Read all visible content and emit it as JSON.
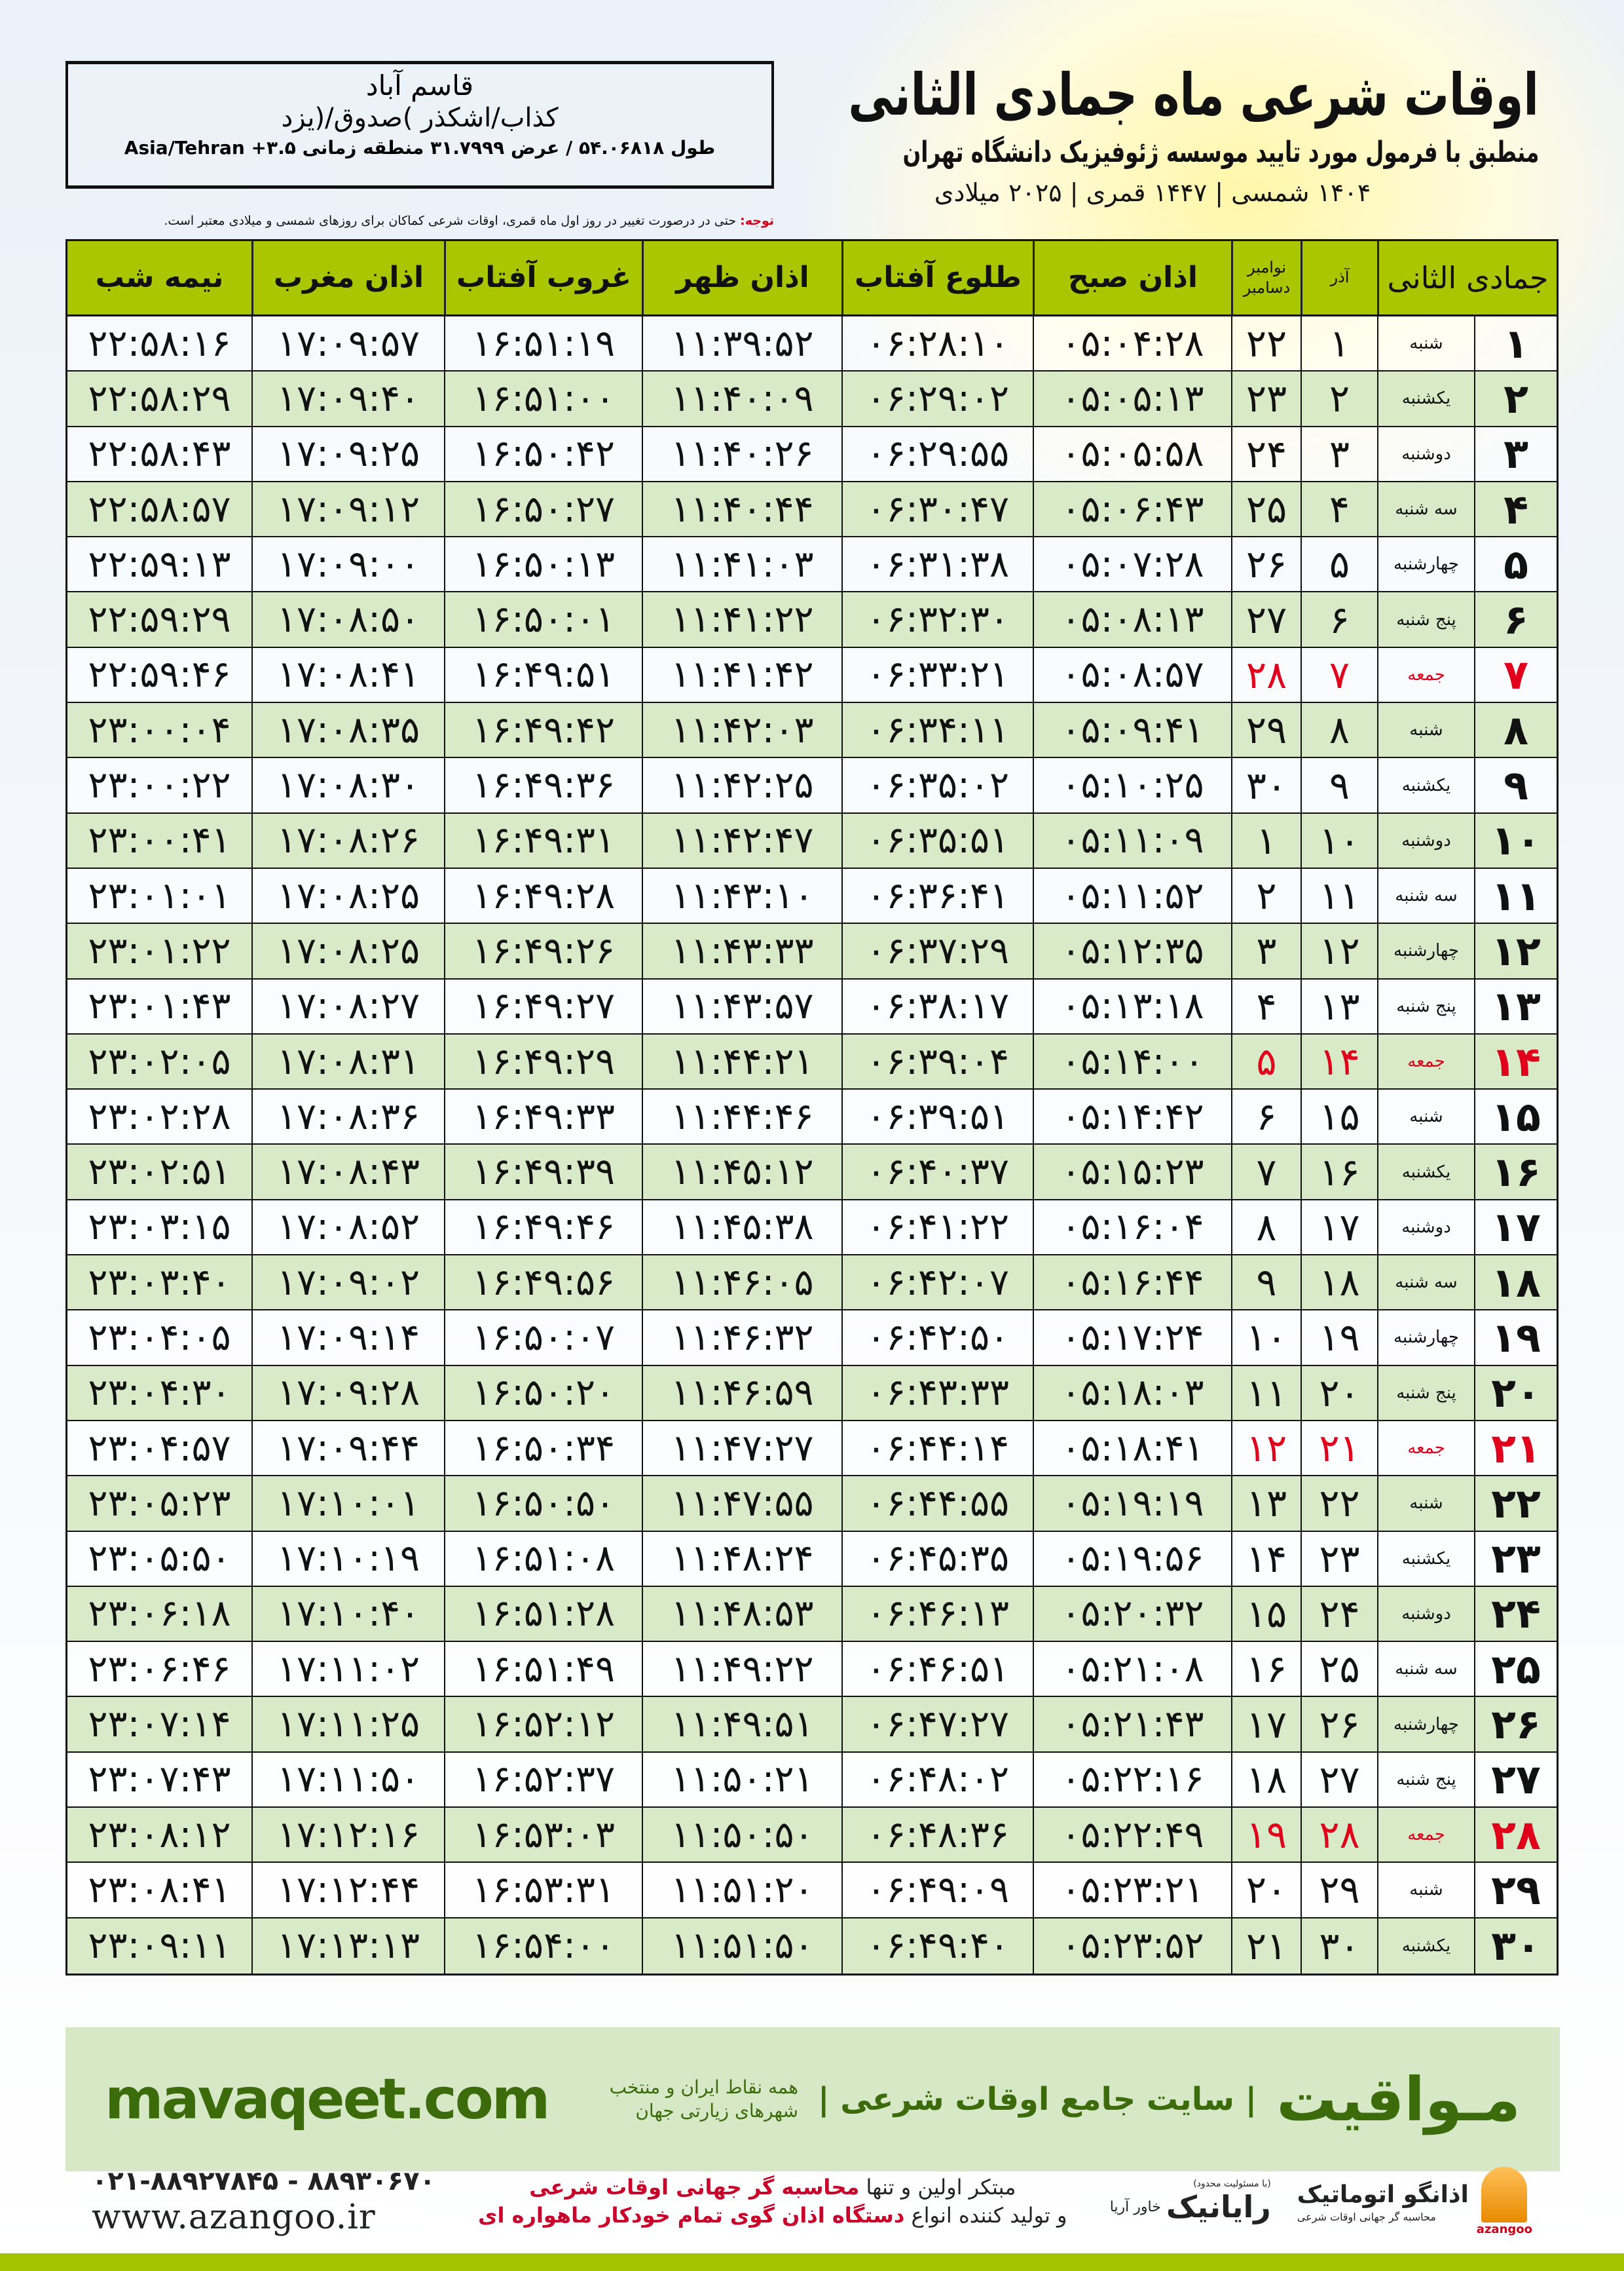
{
  "header": {
    "title": "اوقات شرعی ماه جمادی الثانی",
    "subtitle": "منطبق با فرمول مورد تایید موسسه ژئوفیزیک دانشگاه تهران",
    "years": "۱۴۰۴ شمسی | ۱۴۴۷ قمری | ۲۰۲۵ میلادی"
  },
  "location": {
    "name": "قاسم آباد",
    "region": "کذاب/اشکذر )صدوق/(یزد",
    "coords": "طول ۵۴.۰۶۸۱۸ / عرض ۳۱.۷۹۹۹ منطقه زمانی ۳.۵+ Asia/Tehran"
  },
  "note": {
    "label": "توجه:",
    "text": " حتی در درصورت تغییر در روز اول ماه قمری، اوقات شرعی کماکان برای روزهای شمسی و میلادی معتبر است."
  },
  "columns": {
    "month": "جمادی الثانی",
    "azar": "آذر",
    "greg1": "نوامبر",
    "greg2": "دسامبر",
    "fajr": "اذان صبح",
    "sunrise": "طلوع آفتاب",
    "dhuhr": "اذان ظهر",
    "sunset": "غروب آفتاب",
    "maghrib": "اذان مغرب",
    "midnight": "نیمه شب"
  },
  "colors": {
    "header": "#a9c600",
    "row_alt": "#d6e8c6",
    "friday": "#e0001b",
    "brand": "#3c6b0c"
  },
  "rows": [
    [
      "۱",
      "شنبه",
      "۱",
      "۲۲",
      "۰۵:۰۴:۲۸",
      "۰۶:۲۸:۱۰",
      "۱۱:۳۹:۵۲",
      "۱۶:۵۱:۱۹",
      "۱۷:۰۹:۵۷",
      "۲۲:۵۸:۱۶"
    ],
    [
      "۲",
      "یکشنبه",
      "۲",
      "۲۳",
      "۰۵:۰۵:۱۳",
      "۰۶:۲۹:۰۲",
      "۱۱:۴۰:۰۹",
      "۱۶:۵۱:۰۰",
      "۱۷:۰۹:۴۰",
      "۲۲:۵۸:۲۹"
    ],
    [
      "۳",
      "دوشنبه",
      "۳",
      "۲۴",
      "۰۵:۰۵:۵۸",
      "۰۶:۲۹:۵۵",
      "۱۱:۴۰:۲۶",
      "۱۶:۵۰:۴۲",
      "۱۷:۰۹:۲۵",
      "۲۲:۵۸:۴۳"
    ],
    [
      "۴",
      "سه شنبه",
      "۴",
      "۲۵",
      "۰۵:۰۶:۴۳",
      "۰۶:۳۰:۴۷",
      "۱۱:۴۰:۴۴",
      "۱۶:۵۰:۲۷",
      "۱۷:۰۹:۱۲",
      "۲۲:۵۸:۵۷"
    ],
    [
      "۵",
      "چهارشنبه",
      "۵",
      "۲۶",
      "۰۵:۰۷:۲۸",
      "۰۶:۳۱:۳۸",
      "۱۱:۴۱:۰۳",
      "۱۶:۵۰:۱۳",
      "۱۷:۰۹:۰۰",
      "۲۲:۵۹:۱۳"
    ],
    [
      "۶",
      "پنج شنبه",
      "۶",
      "۲۷",
      "۰۵:۰۸:۱۳",
      "۰۶:۳۲:۳۰",
      "۱۱:۴۱:۲۲",
      "۱۶:۵۰:۰۱",
      "۱۷:۰۸:۵۰",
      "۲۲:۵۹:۲۹"
    ],
    [
      "۷",
      "جمعه",
      "۷",
      "۲۸",
      "۰۵:۰۸:۵۷",
      "۰۶:۳۳:۲۱",
      "۱۱:۴۱:۴۲",
      "۱۶:۴۹:۵۱",
      "۱۷:۰۸:۴۱",
      "۲۲:۵۹:۴۶"
    ],
    [
      "۸",
      "شنبه",
      "۸",
      "۲۹",
      "۰۵:۰۹:۴۱",
      "۰۶:۳۴:۱۱",
      "۱۱:۴۲:۰۳",
      "۱۶:۴۹:۴۲",
      "۱۷:۰۸:۳۵",
      "۲۳:۰۰:۰۴"
    ],
    [
      "۹",
      "یکشنبه",
      "۹",
      "۳۰",
      "۰۵:۱۰:۲۵",
      "۰۶:۳۵:۰۲",
      "۱۱:۴۲:۲۵",
      "۱۶:۴۹:۳۶",
      "۱۷:۰۸:۳۰",
      "۲۳:۰۰:۲۲"
    ],
    [
      "۱۰",
      "دوشنبه",
      "۱۰",
      "۱",
      "۰۵:۱۱:۰۹",
      "۰۶:۳۵:۵۱",
      "۱۱:۴۲:۴۷",
      "۱۶:۴۹:۳۱",
      "۱۷:۰۸:۲۶",
      "۲۳:۰۰:۴۱"
    ],
    [
      "۱۱",
      "سه شنبه",
      "۱۱",
      "۲",
      "۰۵:۱۱:۵۲",
      "۰۶:۳۶:۴۱",
      "۱۱:۴۳:۱۰",
      "۱۶:۴۹:۲۸",
      "۱۷:۰۸:۲۵",
      "۲۳:۰۱:۰۱"
    ],
    [
      "۱۲",
      "چهارشنبه",
      "۱۲",
      "۳",
      "۰۵:۱۲:۳۵",
      "۰۶:۳۷:۲۹",
      "۱۱:۴۳:۳۳",
      "۱۶:۴۹:۲۶",
      "۱۷:۰۸:۲۵",
      "۲۳:۰۱:۲۲"
    ],
    [
      "۱۳",
      "پنج شنبه",
      "۱۳",
      "۴",
      "۰۵:۱۳:۱۸",
      "۰۶:۳۸:۱۷",
      "۱۱:۴۳:۵۷",
      "۱۶:۴۹:۲۷",
      "۱۷:۰۸:۲۷",
      "۲۳:۰۱:۴۳"
    ],
    [
      "۱۴",
      "جمعه",
      "۱۴",
      "۵",
      "۰۵:۱۴:۰۰",
      "۰۶:۳۹:۰۴",
      "۱۱:۴۴:۲۱",
      "۱۶:۴۹:۲۹",
      "۱۷:۰۸:۳۱",
      "۲۳:۰۲:۰۵"
    ],
    [
      "۱۵",
      "شنبه",
      "۱۵",
      "۶",
      "۰۵:۱۴:۴۲",
      "۰۶:۳۹:۵۱",
      "۱۱:۴۴:۴۶",
      "۱۶:۴۹:۳۳",
      "۱۷:۰۸:۳۶",
      "۲۳:۰۲:۲۸"
    ],
    [
      "۱۶",
      "یکشنبه",
      "۱۶",
      "۷",
      "۰۵:۱۵:۲۳",
      "۰۶:۴۰:۳۷",
      "۱۱:۴۵:۱۲",
      "۱۶:۴۹:۳۹",
      "۱۷:۰۸:۴۳",
      "۲۳:۰۲:۵۱"
    ],
    [
      "۱۷",
      "دوشنبه",
      "۱۷",
      "۸",
      "۰۵:۱۶:۰۴",
      "۰۶:۴۱:۲۲",
      "۱۱:۴۵:۳۸",
      "۱۶:۴۹:۴۶",
      "۱۷:۰۸:۵۲",
      "۲۳:۰۳:۱۵"
    ],
    [
      "۱۸",
      "سه شنبه",
      "۱۸",
      "۹",
      "۰۵:۱۶:۴۴",
      "۰۶:۴۲:۰۷",
      "۱۱:۴۶:۰۵",
      "۱۶:۴۹:۵۶",
      "۱۷:۰۹:۰۲",
      "۲۳:۰۳:۴۰"
    ],
    [
      "۱۹",
      "چهارشنبه",
      "۱۹",
      "۱۰",
      "۰۵:۱۷:۲۴",
      "۰۶:۴۲:۵۰",
      "۱۱:۴۶:۳۲",
      "۱۶:۵۰:۰۷",
      "۱۷:۰۹:۱۴",
      "۲۳:۰۴:۰۵"
    ],
    [
      "۲۰",
      "پنج شنبه",
      "۲۰",
      "۱۱",
      "۰۵:۱۸:۰۳",
      "۰۶:۴۳:۳۳",
      "۱۱:۴۶:۵۹",
      "۱۶:۵۰:۲۰",
      "۱۷:۰۹:۲۸",
      "۲۳:۰۴:۳۰"
    ],
    [
      "۲۱",
      "جمعه",
      "۲۱",
      "۱۲",
      "۰۵:۱۸:۴۱",
      "۰۶:۴۴:۱۴",
      "۱۱:۴۷:۲۷",
      "۱۶:۵۰:۳۴",
      "۱۷:۰۹:۴۴",
      "۲۳:۰۴:۵۷"
    ],
    [
      "۲۲",
      "شنبه",
      "۲۲",
      "۱۳",
      "۰۵:۱۹:۱۹",
      "۰۶:۴۴:۵۵",
      "۱۱:۴۷:۵۵",
      "۱۶:۵۰:۵۰",
      "۱۷:۱۰:۰۱",
      "۲۳:۰۵:۲۳"
    ],
    [
      "۲۳",
      "یکشنبه",
      "۲۳",
      "۱۴",
      "۰۵:۱۹:۵۶",
      "۰۶:۴۵:۳۵",
      "۱۱:۴۸:۲۴",
      "۱۶:۵۱:۰۸",
      "۱۷:۱۰:۱۹",
      "۲۳:۰۵:۵۰"
    ],
    [
      "۲۴",
      "دوشنبه",
      "۲۴",
      "۱۵",
      "۰۵:۲۰:۳۲",
      "۰۶:۴۶:۱۳",
      "۱۱:۴۸:۵۳",
      "۱۶:۵۱:۲۸",
      "۱۷:۱۰:۴۰",
      "۲۳:۰۶:۱۸"
    ],
    [
      "۲۵",
      "سه شنبه",
      "۲۵",
      "۱۶",
      "۰۵:۲۱:۰۸",
      "۰۶:۴۶:۵۱",
      "۱۱:۴۹:۲۲",
      "۱۶:۵۱:۴۹",
      "۱۷:۱۱:۰۲",
      "۲۳:۰۶:۴۶"
    ],
    [
      "۲۶",
      "چهارشنبه",
      "۲۶",
      "۱۷",
      "۰۵:۲۱:۴۳",
      "۰۶:۴۷:۲۷",
      "۱۱:۴۹:۵۱",
      "۱۶:۵۲:۱۲",
      "۱۷:۱۱:۲۵",
      "۲۳:۰۷:۱۴"
    ],
    [
      "۲۷",
      "پنج شنبه",
      "۲۷",
      "۱۸",
      "۰۵:۲۲:۱۶",
      "۰۶:۴۸:۰۲",
      "۱۱:۵۰:۲۱",
      "۱۶:۵۲:۳۷",
      "۱۷:۱۱:۵۰",
      "۲۳:۰۷:۴۳"
    ],
    [
      "۲۸",
      "جمعه",
      "۲۸",
      "۱۹",
      "۰۵:۲۲:۴۹",
      "۰۶:۴۸:۳۶",
      "۱۱:۵۰:۵۰",
      "۱۶:۵۳:۰۳",
      "۱۷:۱۲:۱۶",
      "۲۳:۰۸:۱۲"
    ],
    [
      "۲۹",
      "شنبه",
      "۲۹",
      "۲۰",
      "۰۵:۲۳:۲۱",
      "۰۶:۴۹:۰۹",
      "۱۱:۵۱:۲۰",
      "۱۶:۵۳:۳۱",
      "۱۷:۱۲:۴۴",
      "۲۳:۰۸:۴۱"
    ],
    [
      "۳۰",
      "یکشنبه",
      "۳۰",
      "۲۱",
      "۰۵:۲۳:۵۲",
      "۰۶:۴۹:۴۰",
      "۱۱:۵۱:۵۰",
      "۱۶:۵۴:۰۰",
      "۱۷:۱۳:۱۳",
      "۲۳:۰۹:۱۱"
    ]
  ],
  "fridays": [
    "جمعه"
  ],
  "footer": {
    "brand": "مـواقیت",
    "tagline": "| سایت جامع اوقات شرعی |",
    "sub": "همه نقاط ایران و منتخب شهرهای زیارتی جهان",
    "domain": "mavaqeet.com",
    "phones": "۰۲۱-۸۸۹۲۷۸۴۵ - ۸۸۹۳۰۶۷۰",
    "web": "www.azangoo.ir",
    "promo1a": "مبتکر اولین و تنها ",
    "promo1b": "محاسبه گر جهانی اوقات شرعی",
    "promo2a": "و تولید کننده انواع ",
    "promo2b": "دستگاه اذان گوی تمام خودکار ماهواره ای",
    "rayanik": "رایانیک",
    "rayanik_sub": "خاور آریا",
    "rayanik_tiny": "(با مسئولیت محدود)",
    "azangoo": "اذانگو اتوماتیک",
    "azangoo_sub": "محاسبه گر جهانی اوقات شرعی",
    "azangoo_en": "azangoo"
  }
}
